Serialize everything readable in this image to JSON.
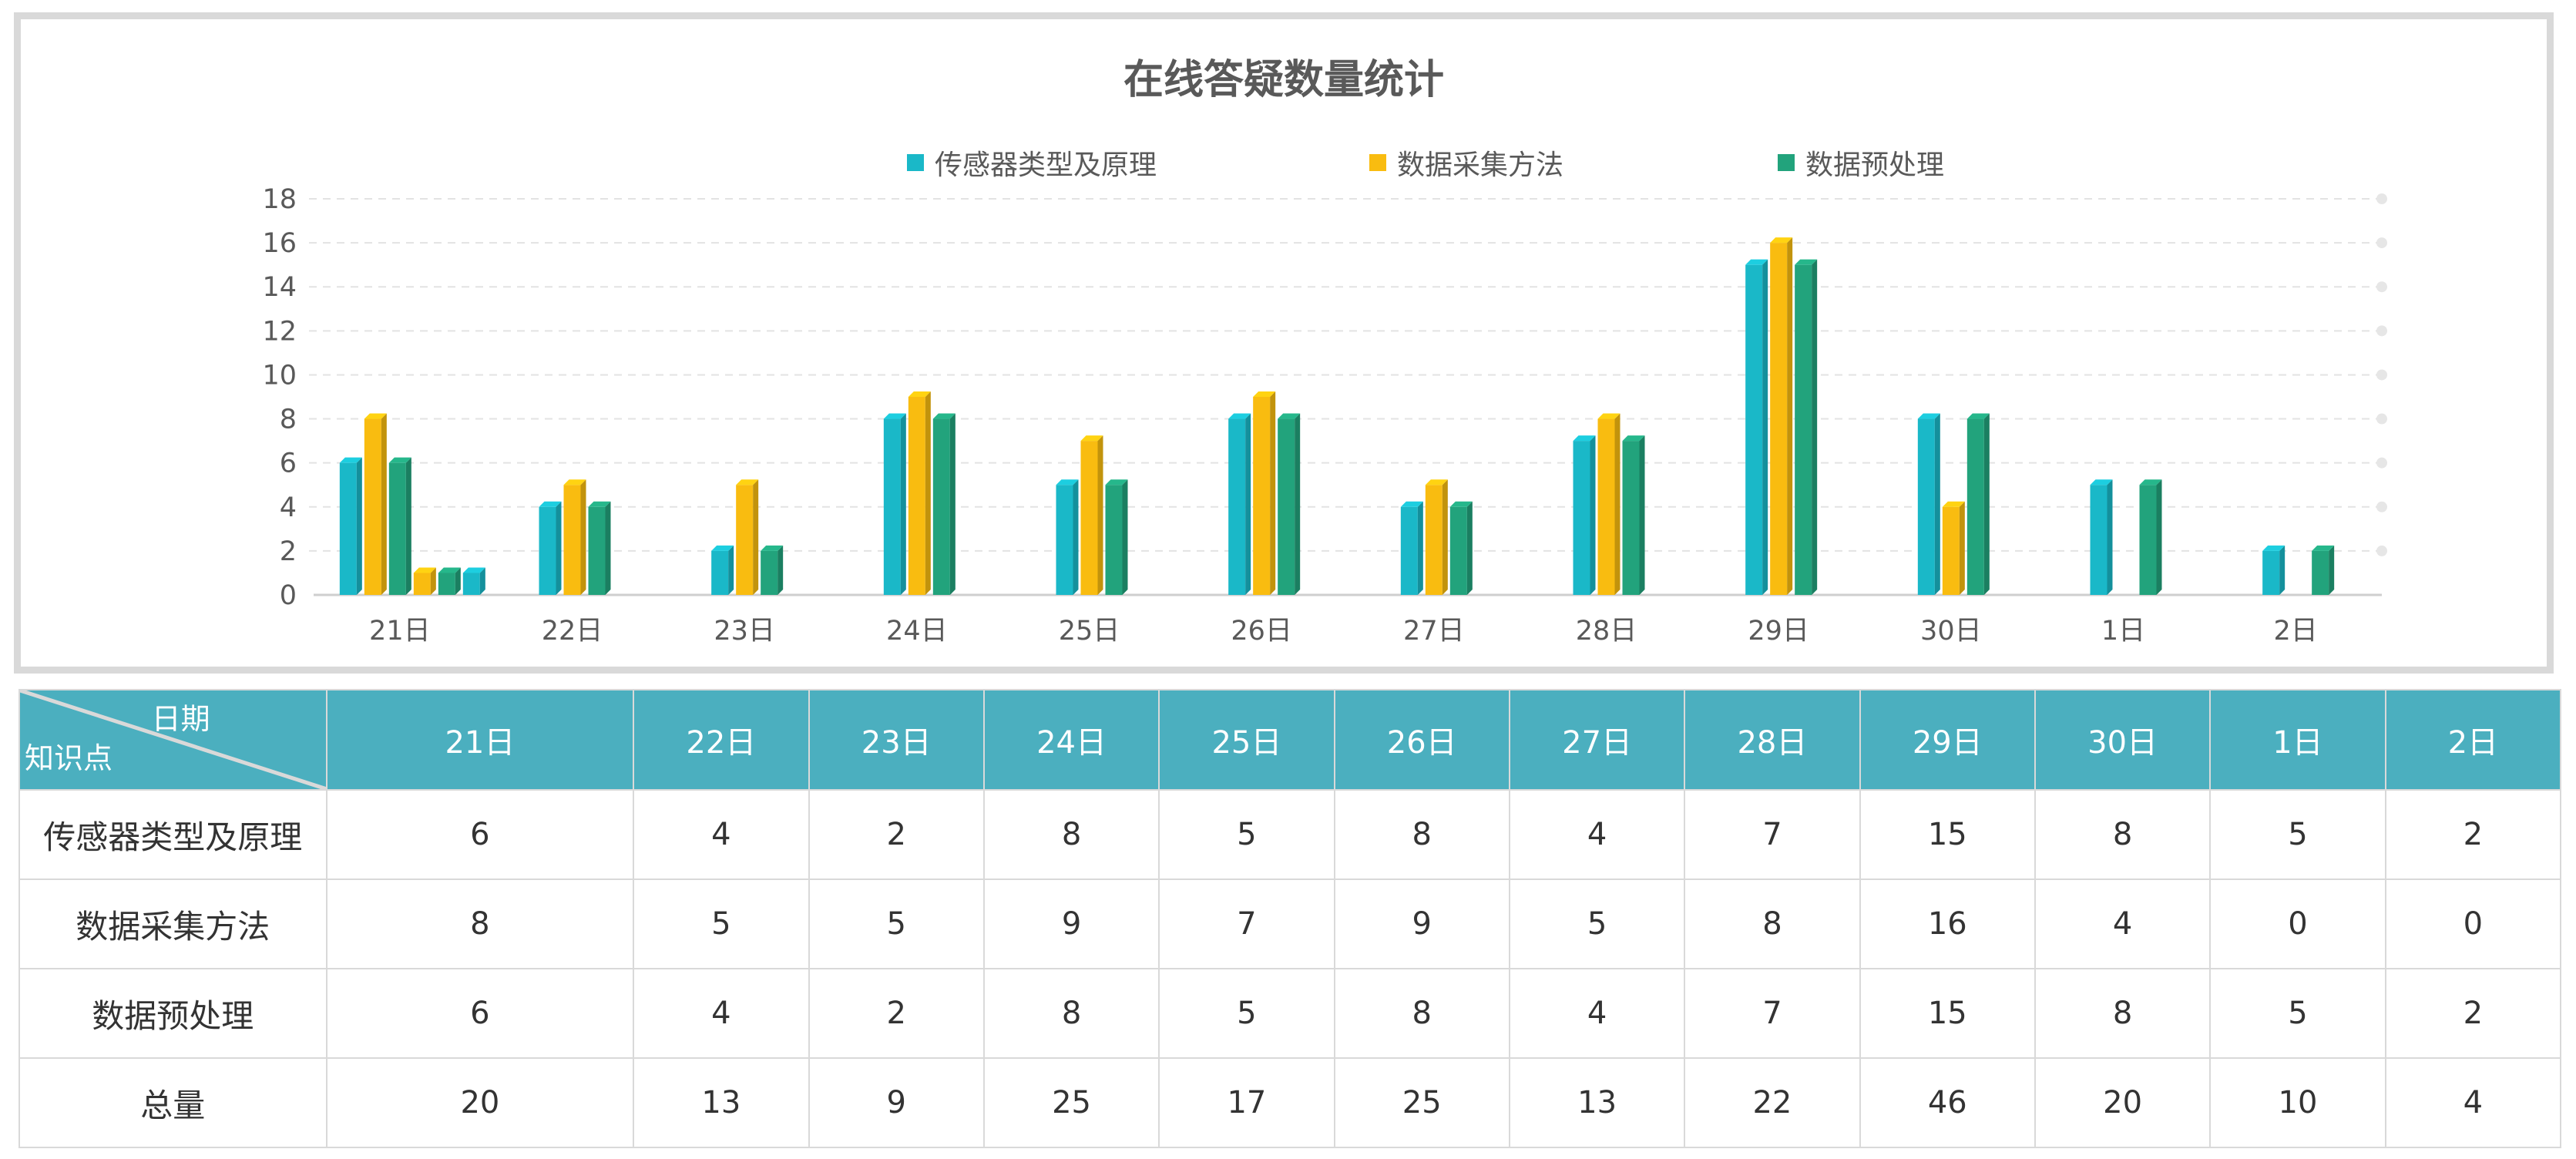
{
  "chart_data": {
    "type": "bar",
    "title": "在线答疑数量统计",
    "categories": [
      "21日",
      "22日",
      "23日",
      "24日",
      "25日",
      "26日",
      "27日",
      "28日",
      "29日",
      "30日",
      "1日",
      "2日"
    ],
    "series": [
      {
        "name": "传感器类型及原理",
        "color": "#1ab8c8",
        "values": [
          6,
          4,
          2,
          8,
          5,
          8,
          4,
          7,
          15,
          8,
          5,
          2
        ]
      },
      {
        "name": "数据采集方法",
        "color": "#f9bc10",
        "values": [
          8,
          5,
          5,
          9,
          7,
          9,
          5,
          8,
          16,
          4,
          0,
          0
        ]
      },
      {
        "name": "数据预处理",
        "color": "#22a37c",
        "values": [
          6,
          4,
          2,
          8,
          5,
          8,
          4,
          7,
          15,
          8,
          5,
          2
        ]
      }
    ],
    "extra_bars_21": [
      1,
      1,
      1
    ],
    "ylim": [
      0,
      18
    ],
    "yticks": [
      "0",
      "2",
      "4",
      "6",
      "8",
      "10",
      "12",
      "14",
      "16",
      "18"
    ],
    "grid": true,
    "legend_position": "top"
  },
  "table": {
    "corner_top": "日期",
    "corner_bottom": "知识点",
    "headers": [
      "21日",
      "22日",
      "23日",
      "24日",
      "25日",
      "26日",
      "27日",
      "28日",
      "29日",
      "30日",
      "1日",
      "2日"
    ],
    "rows": [
      {
        "label": "传感器类型及原理",
        "values": [
          "6",
          "4",
          "2",
          "8",
          "5",
          "8",
          "4",
          "7",
          "15",
          "8",
          "5",
          "2"
        ]
      },
      {
        "label": "数据采集方法",
        "values": [
          "8",
          "5",
          "5",
          "9",
          "7",
          "9",
          "5",
          "8",
          "16",
          "4",
          "0",
          "0"
        ]
      },
      {
        "label": "数据预处理",
        "values": [
          "6",
          "4",
          "2",
          "8",
          "5",
          "8",
          "4",
          "7",
          "15",
          "8",
          "5",
          "2"
        ]
      },
      {
        "label": "总量",
        "values": [
          "20",
          "13",
          "9",
          "25",
          "17",
          "25",
          "13",
          "22",
          "46",
          "20",
          "10",
          "4"
        ]
      }
    ]
  }
}
